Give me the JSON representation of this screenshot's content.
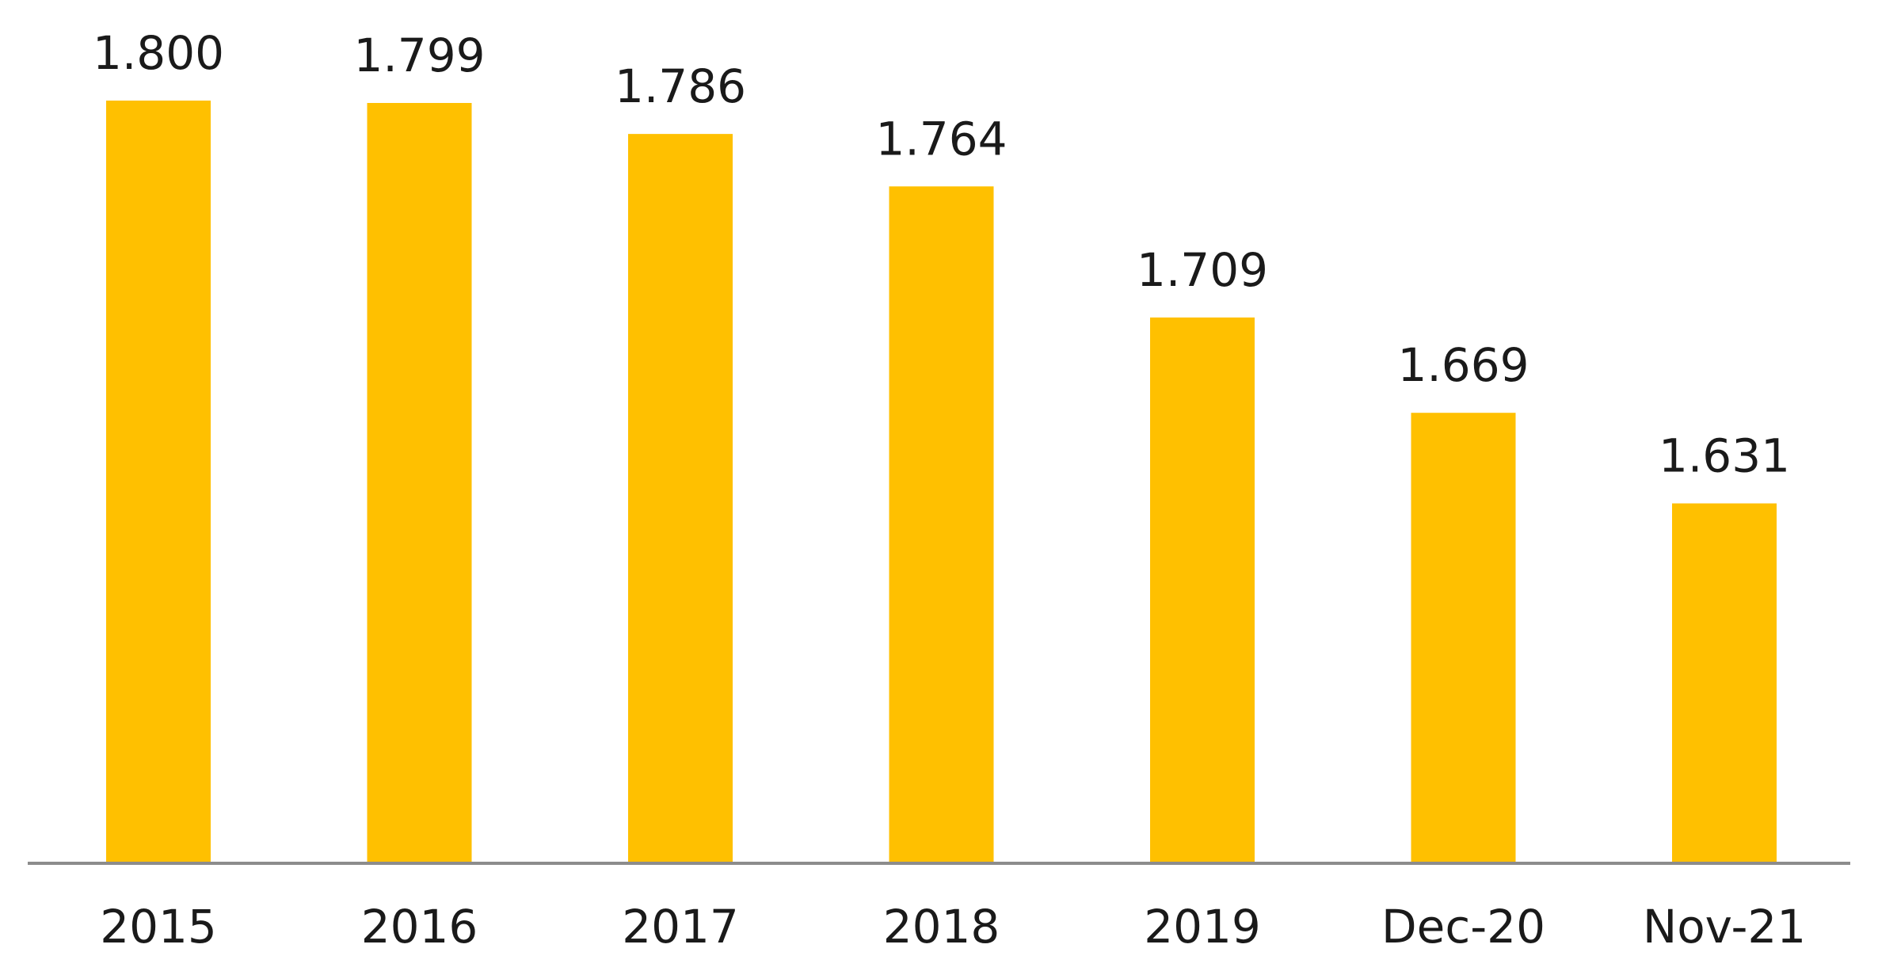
{
  "chart_data": {
    "type": "bar",
    "title": "",
    "xlabel": "",
    "ylabel": "",
    "categories": [
      "2015",
      "2016",
      "2017",
      "2018",
      "2019",
      "Dec-20",
      "Nov-21"
    ],
    "values": [
      1.8,
      1.799,
      1.786,
      1.764,
      1.709,
      1.669,
      1.631
    ],
    "value_labels": [
      "1.800",
      "1.799",
      "1.786",
      "1.764",
      "1.709",
      "1.669",
      "1.631"
    ],
    "ylim": [
      1.48,
      1.8
    ],
    "grid": false,
    "legend": "none",
    "colors": {
      "bar": "#FFC000",
      "axis": "#8c8c8c",
      "text": "#1a1a1a"
    }
  }
}
